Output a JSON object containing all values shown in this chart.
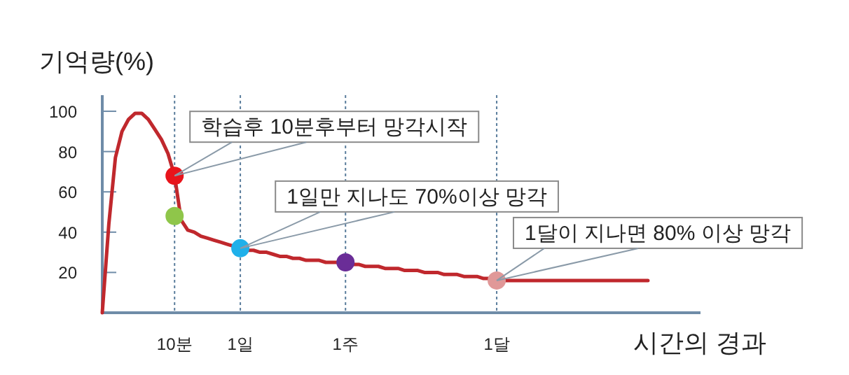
{
  "chart_data": {
    "type": "line",
    "ylabel": "기억량(%)",
    "xlabel": "시간의 경과",
    "categories": [
      null,
      null,
      null,
      null,
      null,
      null,
      null,
      null,
      null,
      null,
      null,
      "10분",
      null,
      null,
      null,
      null,
      null,
      null,
      null,
      null,
      null,
      "1일",
      null,
      null,
      null,
      null,
      null,
      null,
      null,
      null,
      null,
      null,
      null,
      null,
      null,
      null,
      null,
      "1주",
      null,
      null,
      null,
      null,
      null,
      null,
      null,
      null,
      null,
      null,
      null,
      null,
      null,
      null,
      null,
      null,
      null,
      null,
      null,
      null,
      null,
      null,
      "1달",
      null,
      null,
      null,
      null,
      null,
      null,
      null,
      null,
      null,
      null,
      null,
      null,
      null,
      null,
      null,
      null,
      null,
      null,
      null,
      null,
      null,
      null,
      null,
      null,
      null,
      null,
      null,
      null,
      null,
      null
    ],
    "ylim": [
      0,
      108
    ],
    "yticks": [
      20,
      40,
      60,
      80,
      100
    ],
    "grid": "x",
    "series": [
      {
        "type": "line",
        "color": "#c0282d",
        "values": [
          0,
          44,
          77,
          90,
          96,
          99,
          99,
          96,
          91,
          86,
          79,
          68,
          46,
          41,
          40,
          38,
          37,
          36,
          35,
          34,
          33,
          32,
          31,
          31,
          30,
          30,
          29,
          28,
          28,
          27,
          27,
          26,
          26,
          26,
          25,
          25,
          25,
          24,
          24,
          24,
          23,
          23,
          23,
          22,
          22,
          22,
          21,
          21,
          21,
          20,
          20,
          20,
          19,
          19,
          19,
          18,
          18,
          18,
          17,
          17,
          16,
          16,
          16,
          16,
          16,
          16,
          16,
          16,
          16,
          16,
          16,
          16,
          16,
          16,
          16,
          16,
          16,
          16,
          16,
          16,
          16,
          16,
          16,
          16,
          null,
          null,
          null,
          null,
          null,
          null,
          null
        ]
      },
      {
        "type": "scatter",
        "marker": "circle",
        "x": [
          "10분",
          "10분",
          "1일",
          "1주",
          "1달"
        ],
        "values": [
          68,
          48,
          32,
          25,
          16
        ],
        "colors": [
          "#e8141b",
          "#8fc64a",
          "#1fb0ea",
          "#6a2d97",
          "#e09898"
        ]
      }
    ],
    "annotations": [
      {
        "text": "학습후 10분후부터 망각시작",
        "x": "10분",
        "y": 68
      },
      {
        "text": "1일만 지나도 70%이상 망각",
        "x": "1일",
        "y": 32
      },
      {
        "text": "1달이 지나면 80% 이상 망각",
        "x": "1달",
        "y": 16
      }
    ]
  }
}
